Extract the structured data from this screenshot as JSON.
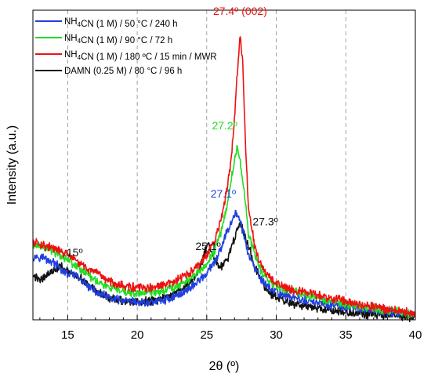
{
  "chart_data": {
    "type": "line",
    "xlabel": "2θ (º)",
    "ylabel": "Intensity (a.u.)",
    "xlim": [
      12.5,
      40
    ],
    "ylim": [
      0,
      1
    ],
    "xticks": [
      15,
      20,
      25,
      30,
      35,
      40
    ],
    "y_tick_labels": "none",
    "grid": "vertical dashed at 15, 20, 25, 30, 35",
    "legend_position": "top-left",
    "series": [
      {
        "legend": [
          {
            "t": "NH"
          },
          {
            "t": "4",
            "sub": true
          },
          {
            "t": "CN (1 M) / 50 °C / 240 h"
          }
        ],
        "color": "#1f3fe0",
        "x": [
          12.5,
          13,
          14,
          14.8,
          15.5,
          16,
          17,
          18,
          19,
          20,
          21,
          22,
          23,
          24,
          24.5,
          25,
          25.5,
          26,
          26.5,
          27,
          27.1,
          27.4,
          27.8,
          28,
          28.5,
          29,
          29.5,
          30,
          31,
          32,
          33,
          34,
          35,
          36,
          37,
          38,
          39,
          40
        ],
        "y": [
          0.205,
          0.205,
          0.185,
          0.15,
          0.145,
          0.125,
          0.09,
          0.07,
          0.06,
          0.055,
          0.057,
          0.065,
          0.08,
          0.11,
          0.13,
          0.15,
          0.18,
          0.225,
          0.29,
          0.34,
          0.345,
          0.32,
          0.25,
          0.21,
          0.16,
          0.125,
          0.105,
          0.09,
          0.075,
          0.062,
          0.055,
          0.047,
          0.04,
          0.035,
          0.03,
          0.025,
          0.02,
          0.015
        ]
      },
      {
        "legend": [
          {
            "t": "NH"
          },
          {
            "t": "4",
            "sub": true
          },
          {
            "t": "CN (1 M) / 90 °C / 72 h"
          }
        ],
        "color": "#22dd22",
        "x": [
          12.5,
          13,
          14,
          15,
          16,
          17,
          18,
          19,
          20,
          21,
          22,
          23,
          24,
          24.5,
          25,
          25.5,
          26,
          26.5,
          27,
          27.2,
          27.5,
          27.8,
          28,
          28.5,
          29,
          29.5,
          30,
          31,
          32,
          33,
          34,
          35,
          36,
          37,
          38,
          39,
          40
        ],
        "y": [
          0.24,
          0.238,
          0.222,
          0.196,
          0.163,
          0.128,
          0.103,
          0.09,
          0.085,
          0.088,
          0.096,
          0.112,
          0.138,
          0.158,
          0.182,
          0.217,
          0.28,
          0.38,
          0.52,
          0.555,
          0.49,
          0.37,
          0.28,
          0.2,
          0.15,
          0.125,
          0.11,
          0.093,
          0.081,
          0.07,
          0.06,
          0.05,
          0.043,
          0.037,
          0.03,
          0.025,
          0.02
        ]
      },
      {
        "legend": [
          {
            "t": "NH"
          },
          {
            "t": "4",
            "sub": true
          },
          {
            "t": "CN (1 M) / 180 ºC / 15 min / MWR"
          }
        ],
        "color": "#ee1111",
        "x": [
          12.5,
          13,
          14,
          15,
          16,
          17,
          18,
          19,
          20,
          21,
          22,
          23,
          24,
          24.5,
          25,
          25.5,
          26,
          26.5,
          26.8,
          27,
          27.2,
          27.4,
          27.6,
          27.8,
          28,
          28.5,
          29,
          29.5,
          30,
          31,
          32,
          33,
          34,
          35,
          36,
          37,
          38,
          39,
          40
        ],
        "y": [
          0.25,
          0.245,
          0.23,
          0.21,
          0.178,
          0.15,
          0.125,
          0.11,
          0.103,
          0.103,
          0.112,
          0.13,
          0.158,
          0.18,
          0.208,
          0.248,
          0.318,
          0.43,
          0.54,
          0.65,
          0.8,
          0.92,
          0.82,
          0.55,
          0.36,
          0.225,
          0.165,
          0.137,
          0.12,
          0.1,
          0.089,
          0.079,
          0.07,
          0.06,
          0.051,
          0.043,
          0.035,
          0.027,
          0.02
        ]
      },
      {
        "legend": [
          {
            "t": "DAMN (0.25 M) / 80 °C / 96 h"
          }
        ],
        "color": "#111111",
        "x": [
          12.5,
          13,
          13.5,
          14,
          14.3,
          14.5,
          15,
          15.5,
          16,
          17,
          18,
          19,
          20,
          21,
          22,
          23,
          24,
          24.5,
          25,
          25.1,
          25.5,
          26,
          26.5,
          27,
          27.3,
          27.5,
          28,
          28.5,
          29,
          29.5,
          30,
          31,
          32,
          33,
          34,
          35,
          36,
          37,
          38,
          39,
          40
        ],
        "y": [
          0.14,
          0.13,
          0.145,
          0.16,
          0.17,
          0.18,
          0.155,
          0.14,
          0.13,
          0.095,
          0.07,
          0.06,
          0.057,
          0.06,
          0.072,
          0.092,
          0.13,
          0.168,
          0.24,
          0.25,
          0.2,
          0.17,
          0.2,
          0.26,
          0.31,
          0.3,
          0.24,
          0.17,
          0.12,
          0.09,
          0.07,
          0.053,
          0.043,
          0.036,
          0.03,
          0.025,
          0.02,
          0.017,
          0.013,
          0.01,
          0.008
        ]
      }
    ],
    "annotations": [
      {
        "text": "27.4º (002)",
        "x": 27.4,
        "y": 0.985,
        "color": "#ee1111",
        "anchor": "middle"
      },
      {
        "text": "27.2º",
        "x": 27.2,
        "y": 0.615,
        "color": "#22dd22",
        "anchor": "end"
      },
      {
        "text": "27.1º",
        "x": 27.1,
        "y": 0.395,
        "color": "#1f3fe0",
        "anchor": "end"
      },
      {
        "text": "27.3º",
        "x": 28.3,
        "y": 0.305,
        "color": "#111111",
        "anchor": "start"
      },
      {
        "text": "25.1º",
        "x": 25.1,
        "y": 0.225,
        "color": "#111111",
        "anchor": "middle"
      },
      {
        "text": "15º",
        "x": 15.5,
        "y": 0.205,
        "color": "#111111",
        "anchor": "middle"
      }
    ]
  }
}
